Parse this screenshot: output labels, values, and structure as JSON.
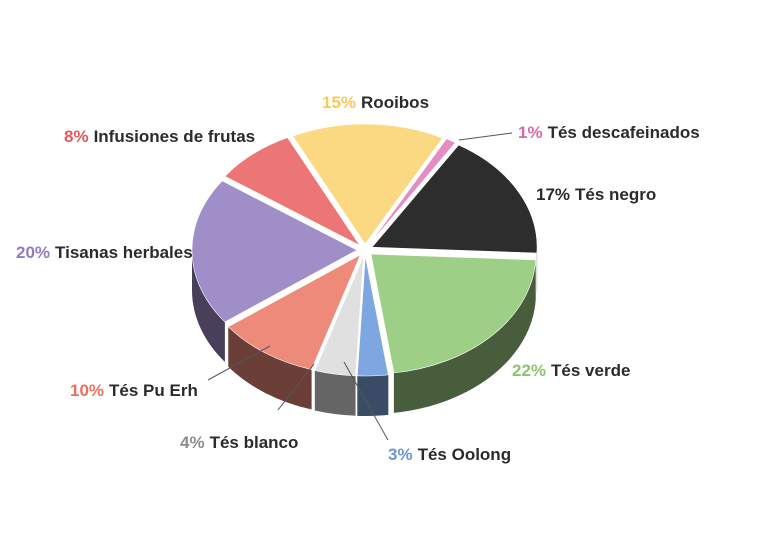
{
  "chart_data": {
    "type": "pie",
    "style": "3d",
    "title": "",
    "slices": [
      {
        "label": "Tés descafeinados",
        "pct_text": "1%",
        "value": 1,
        "color": "#e58cc2"
      },
      {
        "label": "Tés negro",
        "pct_text": "17%",
        "value": 17,
        "color": "#2d2d2d"
      },
      {
        "label": "Tés verde",
        "pct_text": "22%",
        "value": 22,
        "color": "#9dcf86"
      },
      {
        "label": "Tés Oolong",
        "pct_text": "3%",
        "value": 3,
        "color": "#7ea6e0"
      },
      {
        "label": "Tés blanco",
        "pct_text": "4%",
        "value": 4,
        "color": "#e0e0e0"
      },
      {
        "label": "Tés Pu Erh",
        "pct_text": "10%",
        "value": 10,
        "color": "#ee8a7a"
      },
      {
        "label": "Tisanas herbales",
        "pct_text": "20%",
        "value": 20,
        "color": "#a08ec8"
      },
      {
        "label": "Infusiones de frutas",
        "pct_text": "8%",
        "value": 8,
        "color": "#ec7676"
      },
      {
        "label": "Rooibos",
        "pct_text": "15%",
        "value": 15,
        "color": "#fbd982"
      }
    ],
    "pct_label_colors": {
      "Tés descafeinados": "#d86aa8",
      "Tés negro": "#2b2b2b",
      "Tés verde": "#8cc46e",
      "Tés Oolong": "#6b95d8",
      "Tés blanco": "#8c8c8c",
      "Tés Pu Erh": "#ea6f5e",
      "Tisanas herbales": "#8f7cc0",
      "Infusiones de frutas": "#e25a5a",
      "Rooibos": "#f7c95a"
    }
  }
}
